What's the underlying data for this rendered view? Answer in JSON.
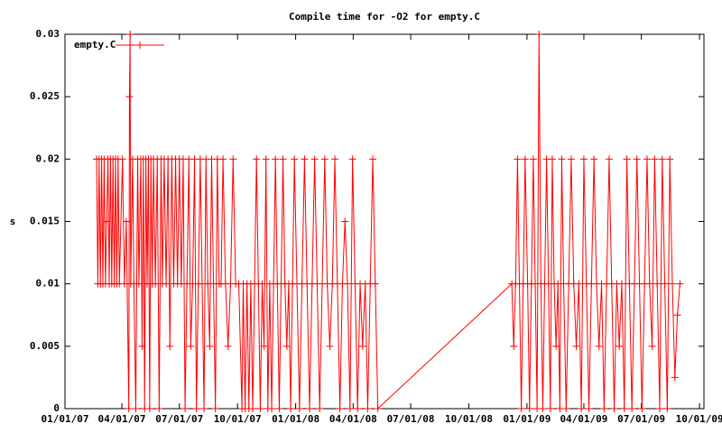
{
  "chart_data": {
    "type": "line",
    "title": "Compile time for -O2 for empty.C",
    "y_label": "s",
    "xlim": [
      "2007-01-01",
      "2009-10-08"
    ],
    "xticks": [
      {
        "value": "2007-01-01",
        "label": "01/01/07"
      },
      {
        "value": "2007-04-01",
        "label": "04/01/07"
      },
      {
        "value": "2007-07-01",
        "label": "07/01/07"
      },
      {
        "value": "2007-10-01",
        "label": "10/01/07"
      },
      {
        "value": "2008-01-01",
        "label": "01/01/08"
      },
      {
        "value": "2008-04-01",
        "label": "04/01/08"
      },
      {
        "value": "2008-07-01",
        "label": "07/01/08"
      },
      {
        "value": "2008-10-01",
        "label": "10/01/08"
      },
      {
        "value": "2009-01-01",
        "label": "01/01/09"
      },
      {
        "value": "2009-04-01",
        "label": "04/01/09"
      },
      {
        "value": "2009-07-01",
        "label": "07/01/09"
      },
      {
        "value": "2009-10-01",
        "label": "10/01/09"
      }
    ],
    "ylim": [
      0,
      0.03
    ],
    "yticks": [
      0,
      0.005,
      0.01,
      0.015,
      0.02,
      0.025,
      0.03
    ],
    "grid": false,
    "legend": "top-left",
    "x": [
      "2007-02-20",
      "2007-02-22",
      "2007-02-24",
      "2007-02-26",
      "2007-02-28",
      "2007-03-02",
      "2007-03-04",
      "2007-03-06",
      "2007-03-08",
      "2007-03-10",
      "2007-03-12",
      "2007-03-14",
      "2007-03-16",
      "2007-03-18",
      "2007-03-20",
      "2007-03-22",
      "2007-03-24",
      "2007-03-26",
      "2007-03-28",
      "2007-04-02",
      "2007-04-05",
      "2007-04-08",
      "2007-04-12",
      "2007-04-13",
      "2007-04-14",
      "2007-04-15",
      "2007-04-18",
      "2007-04-20",
      "2007-04-23",
      "2007-04-26",
      "2007-04-28",
      "2007-05-01",
      "2007-05-03",
      "2007-05-05",
      "2007-05-07",
      "2007-05-09",
      "2007-05-11",
      "2007-05-13",
      "2007-05-15",
      "2007-05-17",
      "2007-05-19",
      "2007-05-21",
      "2007-05-24",
      "2007-05-27",
      "2007-05-30",
      "2007-06-02",
      "2007-06-04",
      "2007-06-07",
      "2007-06-10",
      "2007-06-13",
      "2007-06-16",
      "2007-06-19",
      "2007-06-22",
      "2007-06-25",
      "2007-06-28",
      "2007-07-01",
      "2007-07-04",
      "2007-07-07",
      "2007-07-10",
      "2007-07-13",
      "2007-07-16",
      "2007-07-19",
      "2007-07-22",
      "2007-07-25",
      "2007-07-28",
      "2007-07-31",
      "2007-08-03",
      "2007-08-06",
      "2007-08-09",
      "2007-08-12",
      "2007-08-15",
      "2007-08-18",
      "2007-08-21",
      "2007-08-24",
      "2007-08-27",
      "2007-08-30",
      "2007-09-02",
      "2007-09-05",
      "2007-09-08",
      "2007-09-12",
      "2007-09-16",
      "2007-09-20",
      "2007-09-24",
      "2007-09-28",
      "2007-10-03",
      "2007-10-08",
      "2007-10-10",
      "2007-10-13",
      "2007-10-16",
      "2007-10-19",
      "2007-10-22",
      "2007-10-25",
      "2007-10-28",
      "2007-10-31",
      "2007-11-03",
      "2007-11-06",
      "2007-11-09",
      "2007-11-12",
      "2007-11-15",
      "2007-11-18",
      "2007-11-21",
      "2007-11-24",
      "2007-11-27",
      "2007-11-30",
      "2007-12-03",
      "2007-12-06",
      "2007-12-09",
      "2007-12-12",
      "2007-12-15",
      "2007-12-18",
      "2007-12-21",
      "2007-12-24",
      "2007-12-27",
      "2007-12-30",
      "2008-01-03",
      "2008-01-07",
      "2008-01-11",
      "2008-01-15",
      "2008-01-19",
      "2008-01-23",
      "2008-01-27",
      "2008-01-31",
      "2008-02-04",
      "2008-02-08",
      "2008-02-12",
      "2008-02-16",
      "2008-02-20",
      "2008-02-24",
      "2008-02-28",
      "2008-03-03",
      "2008-03-07",
      "2008-03-11",
      "2008-03-15",
      "2008-03-19",
      "2008-03-23",
      "2008-03-27",
      "2008-03-31",
      "2008-04-04",
      "2008-04-08",
      "2008-04-12",
      "2008-04-16",
      "2008-04-20",
      "2008-04-24",
      "2008-04-28",
      "2008-05-02",
      "2008-05-06",
      "2008-05-10",
      "2008-12-08",
      "2008-12-11",
      "2008-12-14",
      "2008-12-17",
      "2008-12-20",
      "2008-12-23",
      "2008-12-26",
      "2008-12-29",
      "2009-01-02",
      "2009-01-05",
      "2009-01-08",
      "2009-01-11",
      "2009-01-14",
      "2009-01-17",
      "2009-01-20",
      "2009-01-23",
      "2009-01-26",
      "2009-01-29",
      "2009-02-01",
      "2009-02-04",
      "2009-02-07",
      "2009-02-10",
      "2009-02-13",
      "2009-02-16",
      "2009-02-19",
      "2009-02-22",
      "2009-02-25",
      "2009-02-28",
      "2009-03-04",
      "2009-03-08",
      "2009-03-12",
      "2009-03-16",
      "2009-03-20",
      "2009-03-24",
      "2009-03-28",
      "2009-04-01",
      "2009-04-05",
      "2009-04-09",
      "2009-04-13",
      "2009-04-17",
      "2009-04-21",
      "2009-04-25",
      "2009-04-29",
      "2009-05-03",
      "2009-05-07",
      "2009-05-11",
      "2009-05-15",
      "2009-05-19",
      "2009-05-23",
      "2009-05-27",
      "2009-05-31",
      "2009-06-04",
      "2009-06-08",
      "2009-06-12",
      "2009-06-16",
      "2009-06-20",
      "2009-06-24",
      "2009-06-28",
      "2009-07-02",
      "2009-07-06",
      "2009-07-10",
      "2009-07-14",
      "2009-07-18",
      "2009-07-22",
      "2009-07-26",
      "2009-07-30",
      "2009-08-03",
      "2009-08-07",
      "2009-08-11",
      "2009-08-15",
      "2009-08-19",
      "2009-08-23",
      "2009-08-27",
      "2009-08-31"
    ],
    "series": [
      {
        "name": "empty.C",
        "color": "#ff0000",
        "values": [
          0.02,
          0.01,
          0.02,
          0.01,
          0.02,
          0.01,
          0.02,
          0.01,
          0.015,
          0.02,
          0.01,
          0.02,
          0.01,
          0.02,
          0.01,
          0.02,
          0.01,
          0.02,
          0.01,
          0.02,
          0.01,
          0.015,
          0,
          0.025,
          0.03,
          0.01,
          0.02,
          0.01,
          0,
          0.02,
          0.01,
          0.02,
          0.005,
          0.02,
          0,
          0.02,
          0.01,
          0.02,
          0,
          0.02,
          0.01,
          0.02,
          0.01,
          0.02,
          0,
          0.02,
          0.01,
          0.02,
          0.01,
          0.02,
          0.005,
          0.02,
          0.01,
          0.02,
          0.01,
          0.02,
          0.01,
          0.02,
          0,
          0.01,
          0.02,
          0.005,
          0.01,
          0.02,
          0,
          0.01,
          0.02,
          0.01,
          0,
          0.02,
          0.01,
          0.005,
          0.02,
          0.01,
          0,
          0.02,
          0.01,
          0.01,
          0.02,
          0.01,
          0.005,
          0.01,
          0.02,
          0.01,
          0.01,
          0,
          0.01,
          0,
          0.01,
          0,
          0.01,
          0,
          0.01,
          0.02,
          0.01,
          0,
          0.01,
          0.005,
          0.02,
          0,
          0.01,
          0,
          0.01,
          0.02,
          0.01,
          0,
          0.01,
          0.02,
          0.01,
          0.005,
          0.01,
          0,
          0.01,
          0.02,
          0.01,
          0,
          0.01,
          0.02,
          0.01,
          0,
          0.01,
          0.02,
          0.01,
          0,
          0.01,
          0.02,
          0.01,
          0.005,
          0.01,
          0.02,
          0.01,
          0,
          0.01,
          0.015,
          0.01,
          0,
          0.02,
          0.01,
          0,
          0.01,
          0.005,
          0.01,
          0,
          0.01,
          0.02,
          0.01,
          0,
          0.01,
          0.005,
          0.01,
          0.02,
          0.01,
          0,
          0.01,
          0.02,
          0.01,
          0,
          0.01,
          0.02,
          0.01,
          0,
          0.03,
          0.01,
          0,
          0.01,
          0.02,
          0.01,
          0,
          0.02,
          0.01,
          0.005,
          0.01,
          0,
          0.02,
          0.01,
          0,
          0.01,
          0.02,
          0.01,
          0.005,
          0.01,
          0,
          0.02,
          0.01,
          0,
          0.01,
          0.02,
          0.01,
          0.005,
          0.01,
          0,
          0.01,
          0.02,
          0.01,
          0,
          0.01,
          0.005,
          0.01,
          0,
          0.02,
          0.01,
          0,
          0.01,
          0.02,
          0.01,
          0,
          0.01,
          0.02,
          0.01,
          0.005,
          0.02,
          0.01,
          0,
          0.02,
          0.01,
          0,
          0.02,
          0.01,
          0.0025,
          0.0075,
          0.01
        ]
      }
    ]
  }
}
